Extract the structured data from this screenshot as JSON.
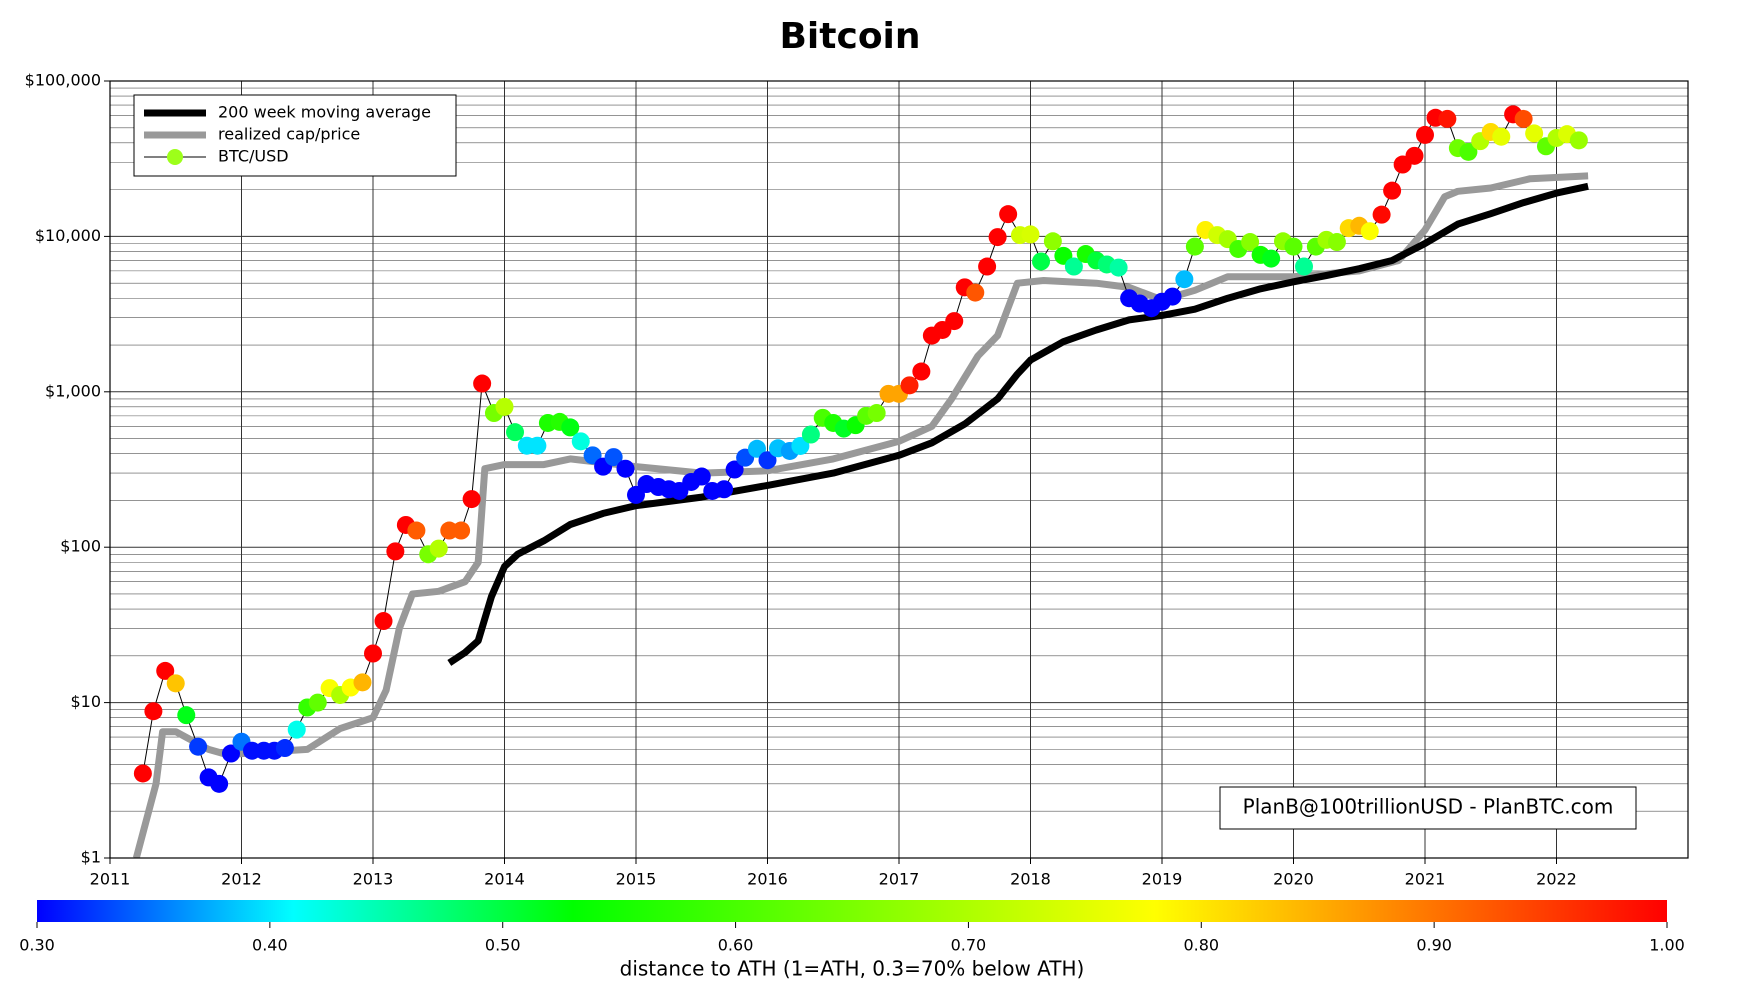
{
  "chart_data": {
    "type": "line",
    "title": "Bitcoin",
    "log_scale": true,
    "grid": true,
    "legend": "upper left",
    "annotation": "PlanB@100trillionUSD  -  PlanBTC.com",
    "xlim": [
      2011,
      2023
    ],
    "xticks": [
      2011,
      2012,
      2013,
      2014,
      2015,
      2016,
      2017,
      2018,
      2019,
      2020,
      2021,
      2022
    ],
    "ylim": [
      1,
      100000
    ],
    "yticks": [
      {
        "value": 1,
        "label": "$1"
      },
      {
        "value": 10,
        "label": "$10"
      },
      {
        "value": 100,
        "label": "$100"
      },
      {
        "value": 1000,
        "label": "$1,000"
      },
      {
        "value": 10000,
        "label": "$10,000"
      },
      {
        "value": 100000,
        "label": "$100,000"
      }
    ],
    "series": [
      {
        "name": "200 week moving average",
        "color": "#000000",
        "x": [
          2013.58,
          2013.7,
          2013.8,
          2013.9,
          2014,
          2014.1,
          2014.3,
          2014.5,
          2014.75,
          2015,
          2015.5,
          2016,
          2016.5,
          2017,
          2017.25,
          2017.5,
          2017.75,
          2017.9,
          2018,
          2018.25,
          2018.5,
          2018.75,
          2019,
          2019.25,
          2019.5,
          2019.75,
          2020,
          2020.25,
          2020.5,
          2020.75,
          2021,
          2021.25,
          2021.5,
          2021.75,
          2022,
          2022.24
        ],
        "values": [
          18,
          21,
          25,
          48,
          75,
          90,
          110,
          140,
          165,
          185,
          210,
          250,
          300,
          390,
          470,
          620,
          900,
          1300,
          1600,
          2100,
          2500,
          2900,
          3100,
          3400,
          4000,
          4600,
          5100,
          5600,
          6200,
          7000,
          9000,
          12000,
          14000,
          16500,
          19000,
          21000
        ]
      },
      {
        "name": "realized cap/price",
        "color": "#999999",
        "x": [
          2011.2,
          2011.35,
          2011.4,
          2011.5,
          2011.75,
          2011.9,
          2012,
          2012.5,
          2012.75,
          2013,
          2013.1,
          2013.2,
          2013.3,
          2013.5,
          2013.7,
          2013.8,
          2013.85,
          2014,
          2014.3,
          2014.5,
          2015,
          2015.5,
          2016,
          2016.5,
          2017,
          2017.25,
          2017.4,
          2017.6,
          2017.75,
          2017.9,
          2018.1,
          2018.5,
          2018.75,
          2019,
          2019.25,
          2019.5,
          2020,
          2020.5,
          2020.8,
          2021,
          2021.15,
          2021.25,
          2021.5,
          2021.8,
          2022.24
        ],
        "values": [
          1,
          3,
          6.5,
          6.5,
          5,
          4.6,
          4.7,
          5,
          6.8,
          8,
          12,
          30,
          50,
          52,
          60,
          80,
          320,
          340,
          340,
          370,
          330,
          300,
          310,
          370,
          480,
          600,
          900,
          1700,
          2300,
          5000,
          5200,
          5000,
          4700,
          3900,
          4500,
          5500,
          5500,
          6000,
          7000,
          11000,
          18000,
          19500,
          20500,
          23500,
          24500
        ]
      },
      {
        "name": "BTC/USD",
        "color": "#000000",
        "legend_marker_color": "#9dff1a",
        "x": [
          2011.25,
          2011.33,
          2011.42,
          2011.5,
          2011.58,
          2011.67,
          2011.75,
          2011.83,
          2011.92,
          2012,
          2012.08,
          2012.17,
          2012.25,
          2012.33,
          2012.42,
          2012.5,
          2012.58,
          2012.67,
          2012.75,
          2012.83,
          2012.92,
          2013,
          2013.08,
          2013.17,
          2013.25,
          2013.33,
          2013.42,
          2013.5,
          2013.58,
          2013.67,
          2013.75,
          2013.83,
          2013.92,
          2014,
          2014.08,
          2014.17,
          2014.25,
          2014.33,
          2014.42,
          2014.5,
          2014.58,
          2014.67,
          2014.75,
          2014.83,
          2014.92,
          2015,
          2015.08,
          2015.17,
          2015.25,
          2015.33,
          2015.42,
          2015.5,
          2015.58,
          2015.67,
          2015.75,
          2015.83,
          2015.92,
          2016,
          2016.08,
          2016.17,
          2016.25,
          2016.33,
          2016.42,
          2016.5,
          2016.58,
          2016.67,
          2016.75,
          2016.83,
          2016.92,
          2017,
          2017.08,
          2017.17,
          2017.25,
          2017.33,
          2017.42,
          2017.5,
          2017.58,
          2017.67,
          2017.75,
          2017.83,
          2017.92,
          2018,
          2018.08,
          2018.17,
          2018.25,
          2018.33,
          2018.42,
          2018.5,
          2018.58,
          2018.67,
          2018.75,
          2018.83,
          2018.92,
          2019,
          2019.08,
          2019.17,
          2019.25,
          2019.33,
          2019.42,
          2019.5,
          2019.58,
          2019.67,
          2019.75,
          2019.83,
          2019.92,
          2020,
          2020.08,
          2020.17,
          2020.25,
          2020.33,
          2020.42,
          2020.5,
          2020.58,
          2020.67,
          2020.75,
          2020.83,
          2020.92,
          2021,
          2021.08,
          2021.17,
          2021.25,
          2021.33,
          2021.42,
          2021.5,
          2021.58,
          2021.67,
          2021.75,
          2021.83,
          2021.92,
          2022,
          2022.08,
          2022.17
        ],
        "values": [
          3.5,
          8.8,
          16,
          13.3,
          8.3,
          5.2,
          3.3,
          3.0,
          4.7,
          5.6,
          4.9,
          4.9,
          4.9,
          5.1,
          6.7,
          9.3,
          10,
          12.4,
          11.2,
          12.5,
          13.5,
          20.7,
          33.5,
          94,
          139,
          128,
          90,
          98,
          128,
          128,
          204,
          1130,
          730,
          800,
          550,
          450,
          450,
          630,
          640,
          590,
          480,
          390,
          330,
          380,
          320,
          217,
          255,
          244,
          236,
          230,
          263,
          285,
          230,
          236,
          316,
          377,
          430,
          363,
          433,
          416,
          448,
          531,
          680,
          630,
          580,
          610,
          700,
          730,
          970,
          970,
          1100,
          1350,
          2300,
          2500,
          2850,
          4700,
          4350,
          6400,
          9900,
          13900,
          10200,
          10300,
          6900,
          9300,
          7500,
          6400,
          7700,
          7000,
          6600,
          6300,
          4000,
          3700,
          3450,
          3800,
          4100,
          5300,
          8600,
          11000,
          10200,
          9600,
          8300,
          9200,
          7600,
          7200,
          9300,
          8600,
          6400,
          8600,
          9500,
          9200,
          11300,
          11700,
          10800,
          13800,
          19700,
          29000,
          33000,
          45000,
          58000,
          57000,
          37000,
          35000,
          41000,
          47000,
          43800,
          61000,
          57000,
          46000,
          38000,
          43000,
          45500,
          41500
        ]
      }
    ],
    "colorbar": {
      "label": "distance to ATH (1=ATH, 0.3=70% below ATH)",
      "lim": [
        0.3,
        1.0
      ],
      "ticks": [
        {
          "value": 0.3,
          "label": "0.30"
        },
        {
          "value": 0.4,
          "label": "0.40"
        },
        {
          "value": 0.5,
          "label": "0.50"
        },
        {
          "value": 0.6,
          "label": "0.60"
        },
        {
          "value": 0.7,
          "label": "0.70"
        },
        {
          "value": 0.8,
          "label": "0.80"
        },
        {
          "value": 0.9,
          "label": "0.90"
        },
        {
          "value": 1.0,
          "label": "1.00"
        }
      ],
      "color_stops": [
        {
          "value": 0.3,
          "color": "#0000ff"
        },
        {
          "value": 0.41,
          "color": "#00ffff"
        },
        {
          "value": 0.53,
          "color": "#00ff00"
        },
        {
          "value": 0.78,
          "color": "#ffff00"
        },
        {
          "value": 1.0,
          "color": "#ff0000"
        }
      ]
    }
  }
}
